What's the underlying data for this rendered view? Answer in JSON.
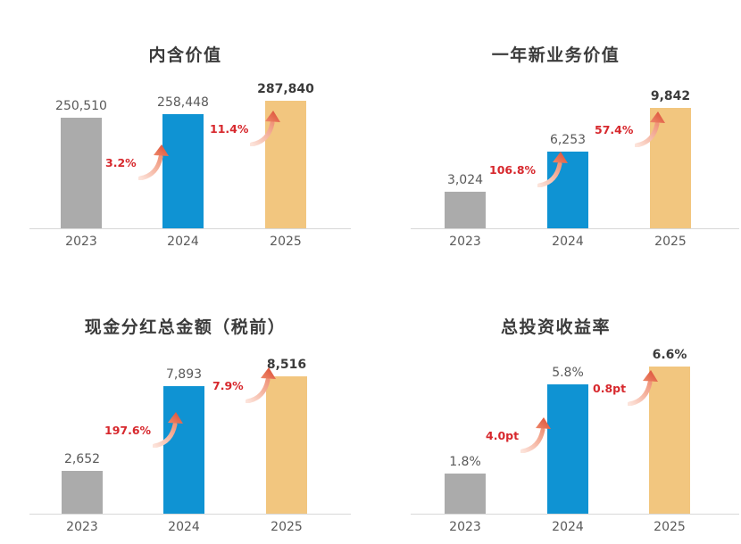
{
  "page": {
    "background": "#ffffff"
  },
  "colors": {
    "bar_2023": "#ababab",
    "bar_2024": "#0f93d3",
    "bar_2025": "#f2c67f",
    "growth_text": "#d7282d",
    "arrow_head_dark": "#da4a33",
    "arrow_head_light": "#ef8a6c",
    "arrow_tail_light": "#fce3da",
    "arrow_tail_dark": "#f0957a",
    "value_label": "#595959",
    "value_label_final": "#3b3b3b",
    "axis_line": "#d8d8d8",
    "title_text": "#3b3b3b"
  },
  "chart_data": [
    {
      "type": "bar",
      "title": "内含价值",
      "categories": [
        "2023",
        "2024",
        "2025"
      ],
      "values": [
        250510,
        258448,
        287840
      ],
      "value_labels": [
        "250,510",
        "258,448",
        "287,840"
      ],
      "growth_labels": [
        "3.2%",
        "11.4%"
      ],
      "ylim": [
        0,
        287840
      ],
      "grid": false,
      "legend": "none"
    },
    {
      "type": "bar",
      "title": "一年新业务价值",
      "categories": [
        "2023",
        "2024",
        "2025"
      ],
      "values": [
        3024,
        6253,
        9842
      ],
      "value_labels": [
        "3,024",
        "6,253",
        "9,842"
      ],
      "growth_labels": [
        "106.8%",
        "57.4%"
      ],
      "ylim": [
        0,
        9842
      ],
      "grid": false,
      "legend": "none"
    },
    {
      "type": "bar",
      "title": "现金分红总金额（税前）",
      "categories": [
        "2023",
        "2024",
        "2025"
      ],
      "values": [
        2652,
        7893,
        8516
      ],
      "value_labels": [
        "2,652",
        "7,893",
        "8,516"
      ],
      "growth_labels": [
        "197.6%",
        "7.9%"
      ],
      "ylim": [
        0,
        8516
      ],
      "grid": false,
      "legend": "none"
    },
    {
      "type": "bar",
      "title": "总投资收益率",
      "categories": [
        "2023",
        "2024",
        "2025"
      ],
      "values": [
        1.8,
        5.8,
        6.6
      ],
      "value_labels": [
        "1.8%",
        "5.8%",
        "6.6%"
      ],
      "growth_labels": [
        "4.0pt",
        "0.8pt"
      ],
      "ylim": [
        0,
        6.6
      ],
      "grid": false,
      "legend": "none"
    }
  ]
}
